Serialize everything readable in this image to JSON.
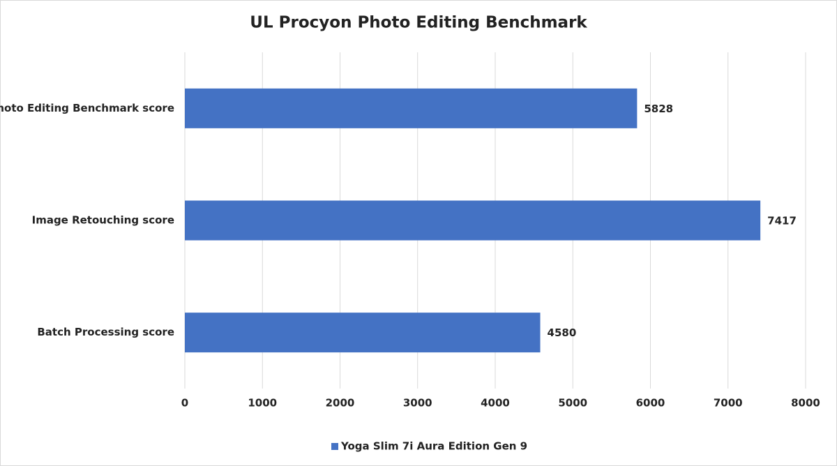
{
  "chart_data": {
    "type": "hbar",
    "title": "UL Procyon Photo Editing Benchmark",
    "categories": [
      "Photo Editing Benchmark score",
      "Image Retouching score",
      "Batch Processing score"
    ],
    "series": [
      {
        "name": "Yoga Slim 7i Aura Edition Gen 9",
        "color": "#4472c4",
        "values": [
          5828,
          7417,
          4580
        ]
      }
    ],
    "xlim": [
      0,
      8000
    ],
    "xticks": [
      0,
      1000,
      2000,
      3000,
      4000,
      5000,
      6000,
      7000,
      8000
    ],
    "grid": true,
    "legend": "bottom"
  }
}
